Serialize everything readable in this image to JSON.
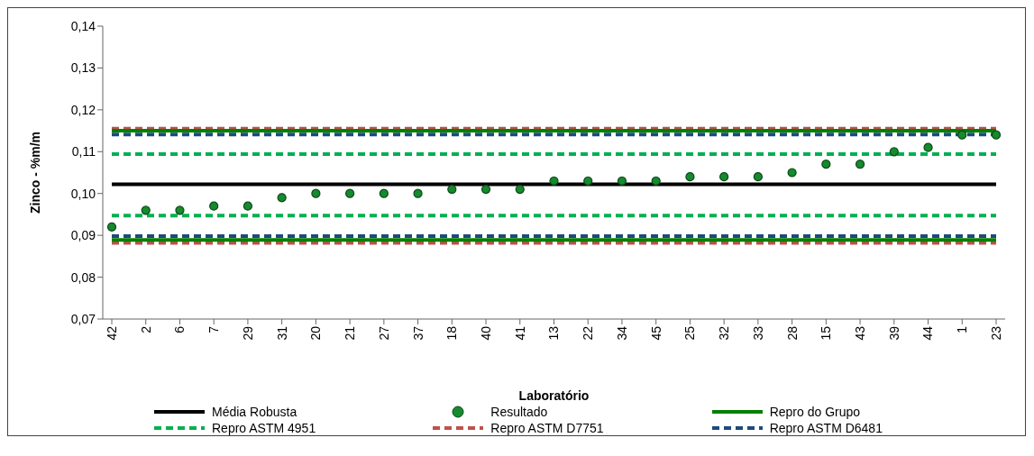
{
  "chart_data": {
    "type": "line",
    "xlabel": "Laboratório",
    "ylabel": "Zinco - %m/m",
    "categories": [
      "42",
      "2",
      "6",
      "7",
      "29",
      "31",
      "20",
      "21",
      "27",
      "37",
      "18",
      "40",
      "41",
      "13",
      "22",
      "34",
      "45",
      "25",
      "32",
      "33",
      "28",
      "15",
      "43",
      "39",
      "44",
      "1",
      "23"
    ],
    "ylim": [
      0.07,
      0.14
    ],
    "yticks": [
      {
        "value": 0.07,
        "label": "0,07"
      },
      {
        "value": 0.08,
        "label": "0,08"
      },
      {
        "value": 0.09,
        "label": "0,09"
      },
      {
        "value": 0.1,
        "label": "0,10"
      },
      {
        "value": 0.11,
        "label": "0,11"
      },
      {
        "value": 0.12,
        "label": "0,12"
      },
      {
        "value": 0.13,
        "label": "0,13"
      },
      {
        "value": 0.14,
        "label": "0,14"
      }
    ],
    "grid": false,
    "legend": "bottom",
    "series": [
      {
        "name": "Média Robusta",
        "color": "#000000",
        "line_style": "solid",
        "values": [
          0.1022,
          0.1022,
          0.1022,
          0.1022,
          0.1022,
          0.1022,
          0.1022,
          0.1022,
          0.1022,
          0.1022,
          0.1022,
          0.1022,
          0.1022,
          0.1022,
          0.1022,
          0.1022,
          0.1022,
          0.1022,
          0.1022,
          0.1022,
          0.1022,
          0.1022,
          0.1022,
          0.1022,
          0.1022,
          0.1022,
          0.1022
        ]
      },
      {
        "name": "Resultado",
        "type": "scatter",
        "color": "#168a2e",
        "marker": "circle",
        "values": [
          0.092,
          0.096,
          0.096,
          0.097,
          0.097,
          0.099,
          0.1,
          0.1,
          0.1,
          0.1,
          0.101,
          0.101,
          0.101,
          0.103,
          0.103,
          0.103,
          0.103,
          0.104,
          0.104,
          0.104,
          0.105,
          0.107,
          0.107,
          0.11,
          0.111,
          0.114,
          0.114
        ]
      },
      {
        "name": "Repro do Grupo",
        "color": "#008000",
        "line_style": "solid",
        "values": [
          0.115,
          0.115,
          0.115,
          0.115,
          0.115,
          0.115,
          0.115,
          0.115,
          0.115,
          0.115,
          0.115,
          0.115,
          0.115,
          0.115,
          0.115,
          0.115,
          0.115,
          0.115,
          0.115,
          0.115,
          0.115,
          0.115,
          0.115,
          0.115,
          0.115,
          0.115,
          0.115
        ]
      },
      {
        "color": "#008000",
        "line_style": "solid",
        "values": [
          0.0889,
          0.0889,
          0.0889,
          0.0889,
          0.0889,
          0.0889,
          0.0889,
          0.0889,
          0.0889,
          0.0889,
          0.0889,
          0.0889,
          0.0889,
          0.0889,
          0.0889,
          0.0889,
          0.0889,
          0.0889,
          0.0889,
          0.0889,
          0.0889,
          0.0889,
          0.0889,
          0.0889,
          0.0889,
          0.0889,
          0.0889
        ]
      },
      {
        "name": "Repro ASTM 4951",
        "color": "#00b050",
        "line_style": "dashed",
        "values": [
          0.1094,
          0.1094,
          0.1094,
          0.1094,
          0.1094,
          0.1094,
          0.1094,
          0.1094,
          0.1094,
          0.1094,
          0.1094,
          0.1094,
          0.1094,
          0.1094,
          0.1094,
          0.1094,
          0.1094,
          0.1094,
          0.1094,
          0.1094,
          0.1094,
          0.1094,
          0.1094,
          0.1094,
          0.1094,
          0.1094,
          0.1094
        ]
      },
      {
        "color": "#00b050",
        "line_style": "dashed",
        "values": [
          0.0947,
          0.0947,
          0.0947,
          0.0947,
          0.0947,
          0.0947,
          0.0947,
          0.0947,
          0.0947,
          0.0947,
          0.0947,
          0.0947,
          0.0947,
          0.0947,
          0.0947,
          0.0947,
          0.0947,
          0.0947,
          0.0947,
          0.0947,
          0.0947,
          0.0947,
          0.0947,
          0.0947,
          0.0947,
          0.0947,
          0.0947
        ]
      },
      {
        "name": "Repro ASTM D7751",
        "color": "#c0504d",
        "line_style": "dashed",
        "values": [
          0.1155,
          0.1155,
          0.1155,
          0.1155,
          0.1155,
          0.1155,
          0.1155,
          0.1155,
          0.1155,
          0.1155,
          0.1155,
          0.1155,
          0.1155,
          0.1155,
          0.1155,
          0.1155,
          0.1155,
          0.1155,
          0.1155,
          0.1155,
          0.1155,
          0.1155,
          0.1155,
          0.1155,
          0.1155,
          0.1155,
          0.1155
        ]
      },
      {
        "color": "#c0504d",
        "line_style": "dashed",
        "values": [
          0.0882,
          0.0882,
          0.0882,
          0.0882,
          0.0882,
          0.0882,
          0.0882,
          0.0882,
          0.0882,
          0.0882,
          0.0882,
          0.0882,
          0.0882,
          0.0882,
          0.0882,
          0.0882,
          0.0882,
          0.0882,
          0.0882,
          0.0882,
          0.0882,
          0.0882,
          0.0882,
          0.0882,
          0.0882,
          0.0882,
          0.0882
        ]
      },
      {
        "name": "Repro ASTM D6481",
        "color": "#1f497d",
        "line_style": "dashed",
        "values": [
          0.1141,
          0.1141,
          0.1141,
          0.1141,
          0.1141,
          0.1141,
          0.1141,
          0.1141,
          0.1141,
          0.1141,
          0.1141,
          0.1141,
          0.1141,
          0.1141,
          0.1141,
          0.1141,
          0.1141,
          0.1141,
          0.1141,
          0.1141,
          0.1141,
          0.1141,
          0.1141,
          0.1141,
          0.1141,
          0.1141,
          0.1141
        ]
      },
      {
        "color": "#1f497d",
        "line_style": "dashed",
        "values": [
          0.0898,
          0.0898,
          0.0898,
          0.0898,
          0.0898,
          0.0898,
          0.0898,
          0.0898,
          0.0898,
          0.0898,
          0.0898,
          0.0898,
          0.0898,
          0.0898,
          0.0898,
          0.0898,
          0.0898,
          0.0898,
          0.0898,
          0.0898,
          0.0898,
          0.0898,
          0.0898,
          0.0898,
          0.0898,
          0.0898,
          0.0898
        ]
      }
    ]
  }
}
